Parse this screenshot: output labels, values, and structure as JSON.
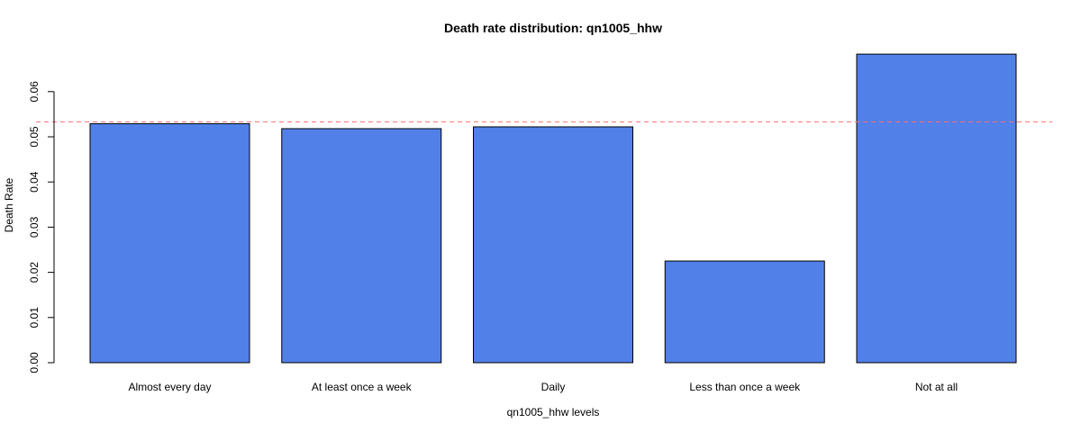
{
  "chart_data": {
    "type": "bar",
    "title": "Death rate distribution: qn1005_hhw",
    "xlabel": "qn1005_hhw levels",
    "ylabel": "Death Rate",
    "categories": [
      "Almost every day",
      "At least once a week",
      "Daily",
      "Less than once a week",
      "Not at all"
    ],
    "values": [
      0.0529,
      0.0518,
      0.0522,
      0.0225,
      0.0683
    ],
    "ylim": [
      0,
      0.0683
    ],
    "yticks": [
      "0.00",
      "0.01",
      "0.02",
      "0.03",
      "0.04",
      "0.05",
      "0.06"
    ],
    "reference_line": {
      "value": 0.0533,
      "style": "dashed"
    },
    "colors": {
      "bar": "#5280e9",
      "bar_border": "#000000",
      "reference": "#ff6b6b"
    },
    "grid": false,
    "legend": "none"
  }
}
